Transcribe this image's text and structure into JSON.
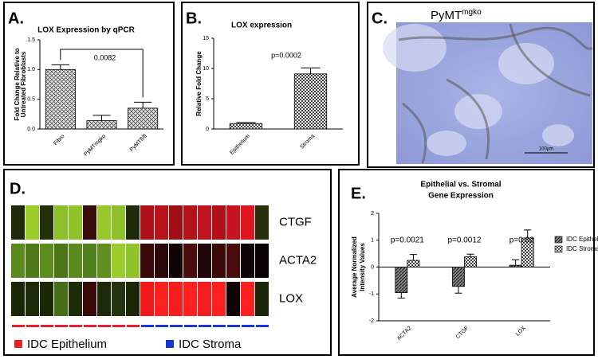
{
  "chart_data": [
    {
      "type": "bar",
      "label": "A.",
      "title": "LOX Expression by qPCR",
      "ylabel": [
        "Fold Change Relative to",
        "Untreated Fibroblasts"
      ],
      "categories": [
        "Fibro",
        "PyMTmgko",
        "PyMTfl/fl"
      ],
      "values": [
        1.0,
        0.14,
        0.35
      ],
      "errors": [
        0.08,
        0.09,
        0.1
      ],
      "fill": "hatchA",
      "ylim": [
        0,
        1.5
      ],
      "yticks": [
        {
          "value": 0,
          "label": "0.0"
        },
        {
          "value": 0.5,
          "label": "0.5"
        },
        {
          "value": 1,
          "label": "1.0"
        },
        {
          "value": 1.5,
          "label": "1.5"
        }
      ],
      "annotation": "0.0082"
    },
    {
      "type": "bar",
      "label": "B.",
      "title": "LOX expression",
      "ylabel": [
        "Relative Fold Change"
      ],
      "categories": [
        "Epithelium",
        "Stroma"
      ],
      "values": [
        0.9,
        9.1
      ],
      "errors": [
        0.15,
        1.0
      ],
      "fill": "checker",
      "ylim": [
        0,
        15
      ],
      "yticks": [
        0,
        5,
        10,
        15
      ],
      "annotation": "p=0.0002"
    },
    {
      "type": "image",
      "label": "C.",
      "title": "PyMT",
      "title_superscript": "mgko",
      "scale_bar": "100µm"
    },
    {
      "type": "heatmap",
      "label": "D.",
      "rows": [
        "CTGF",
        "ACTA2",
        "LOX"
      ],
      "colors": [
        [
          "#1e2a0a",
          "#9ccc2a",
          "#24300c",
          "#8cc02a",
          "#8ec42a",
          "#3a0c0c",
          "#98c82c",
          "#8ebe2a",
          "#1e2c0c",
          "#b01018",
          "#b8121a",
          "#a00e16",
          "#b4121a",
          "#c01420",
          "#b21018",
          "#c81420",
          "#e0161e",
          "#26300e"
        ],
        [
          "#5a8a1e",
          "#4e7a1a",
          "#5c8c1e",
          "#4a7618",
          "#5a8a1e",
          "#50801c",
          "#629020",
          "#9ccc2c",
          "#92c22a",
          "#3a0a0a",
          "#2a0808",
          "#100404",
          "#4a0c0c",
          "#200606",
          "#3a0a0a",
          "#4a0c0c",
          "#100404",
          "#0a0202"
        ],
        [
          "#1a2608",
          "#1c2a0a",
          "#1a2808",
          "#466e18",
          "#1e2c0a",
          "#3a0a0a",
          "#1c2a0a",
          "#223410",
          "#1a2808",
          "#f01818",
          "#ff2020",
          "#f81c1c",
          "#ff2020",
          "#f41c1c",
          "#ff2020",
          "#100404",
          "#ff2020",
          "#1a2608"
        ]
      ],
      "column_colors": [
        "#e8202a",
        "#e8202a",
        "#e8202a",
        "#e8202a",
        "#e8202a",
        "#e8202a",
        "#e8202a",
        "#e8202a",
        "#e8202a",
        "#1838d8",
        "#1838d8",
        "#1838d8",
        "#1838d8",
        "#1838d8",
        "#1838d8",
        "#1838d8",
        "#1838d8",
        "#1838d8"
      ],
      "legend": [
        {
          "name": "IDC Epithelium",
          "color": "#e8202a"
        },
        {
          "name": "IDC Stroma",
          "color": "#1838d8"
        }
      ]
    },
    {
      "type": "bar",
      "label": "E.",
      "title": [
        "Epithelial vs. Stromal",
        "Gene Expression"
      ],
      "ylabel": [
        "Average Normalized",
        "Intensity Values"
      ],
      "categories": [
        "ACTA2",
        "CTGF",
        "LOX"
      ],
      "series": [
        {
          "name": "IDC Epithelium",
          "fill": "darkhatch",
          "values": [
            -0.95,
            -0.72,
            0.07
          ],
          "errors": [
            0.2,
            0.25,
            0.2
          ]
        },
        {
          "name": "IDC Stroma",
          "fill": "checker",
          "values": [
            0.25,
            0.38,
            1.08
          ],
          "errors": [
            0.22,
            0.1,
            0.3
          ]
        }
      ],
      "ylim": [
        -2,
        2
      ],
      "yticks": [
        -2,
        -1,
        0,
        1,
        2
      ],
      "annotations": [
        "p=0.0021",
        "p=0.0012",
        "p=0.02"
      ]
    }
  ]
}
